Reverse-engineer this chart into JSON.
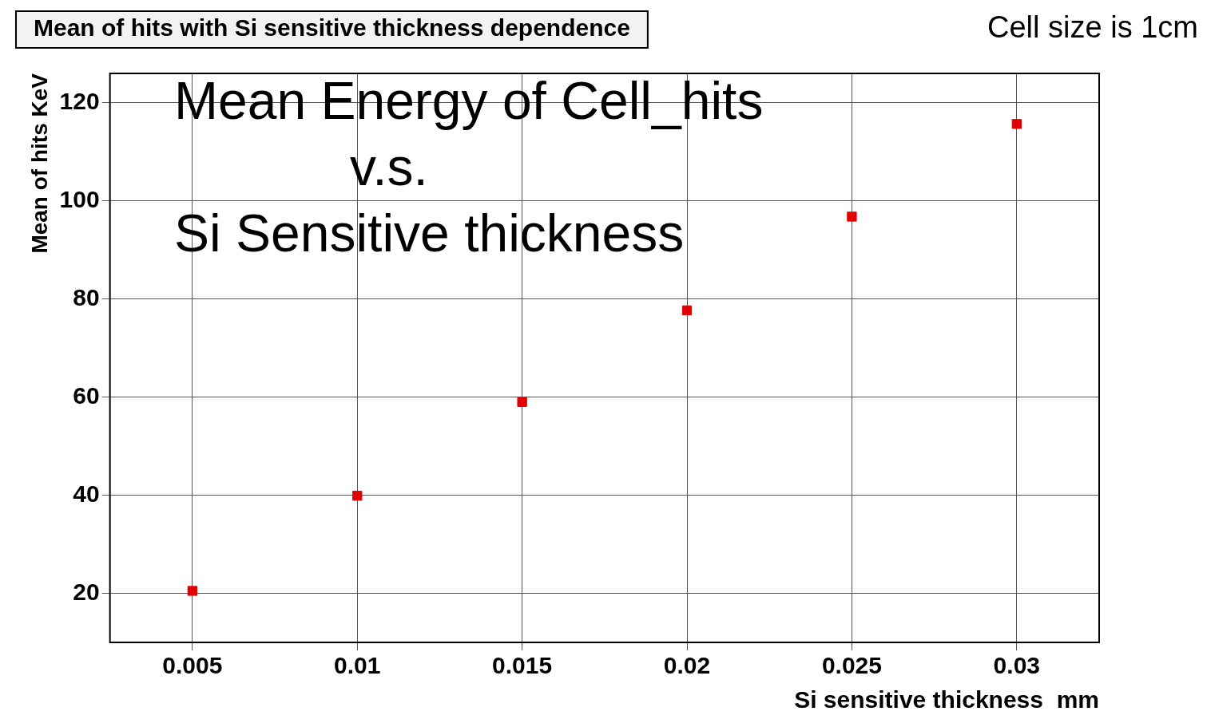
{
  "chart_data": {
    "type": "scatter",
    "title": "Mean of hits with Si sensitive thickness dependence",
    "xlabel": "Si sensitive thickness  mm",
    "ylabel": "Mean of hits KeV",
    "annotations": [
      "Cell size is 1cm",
      "Mean Energy of Cell_hits\n            v.s.\nSi Sensitive thickness"
    ],
    "x": [
      0.005,
      0.01,
      0.015,
      0.02,
      0.025,
      0.03
    ],
    "series": [
      {
        "color": "#e00000",
        "values": [
          20.5,
          39.9,
          59,
          77.7,
          96.8,
          115.7
        ]
      }
    ],
    "xlim": [
      0.0025,
      0.0325
    ],
    "xticks": [
      0.005,
      0.01,
      0.015,
      0.02,
      0.025,
      0.03
    ],
    "ylim": [
      10,
      126
    ],
    "yticks": [
      20,
      40,
      60,
      80,
      100,
      120
    ],
    "grid": true,
    "legend": false,
    "marker": "square"
  }
}
